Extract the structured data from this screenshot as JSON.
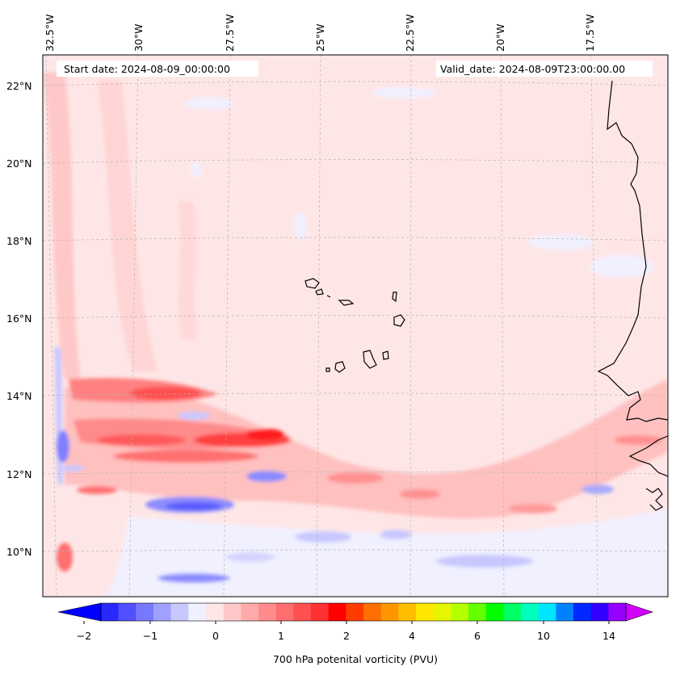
{
  "map": {
    "start_label": "Start date: 2024-08-09_00:00:00",
    "valid_label": "Valid_date: 2024-08-09T23:00:00.00",
    "lon_labels": [
      "32.5°W",
      "30°W",
      "27.5°W",
      "25°W",
      "22.5°W",
      "20°W",
      "17.5°W"
    ],
    "lat_labels": [
      "22°N",
      "20°N",
      "18°N",
      "16°N",
      "14°N",
      "12°N",
      "10°N"
    ],
    "background_color": "#ffe6e6",
    "coast_color": "#000000"
  },
  "colorbar": {
    "title": "700 hPa potenital vorticity (PVU)",
    "tick_labels": [
      "−2",
      "−1",
      "0",
      "1",
      "2",
      "4",
      "6",
      "10",
      "14"
    ],
    "colors": [
      "#0000ff",
      "#2828ff",
      "#5050ff",
      "#7878ff",
      "#a0a0ff",
      "#c8c8ff",
      "#f0f0ff",
      "#ffe6e6",
      "#ffc8c8",
      "#ffaaaa",
      "#ff8c8c",
      "#ff6e6e",
      "#ff5050",
      "#ff3232",
      "#ff0000",
      "#ff3c00",
      "#ff6e00",
      "#ff9600",
      "#ffbe00",
      "#ffe600",
      "#e6f500",
      "#b4ff00",
      "#64ff00",
      "#00ff00",
      "#00ff64",
      "#00ffbe",
      "#00e6ff",
      "#0082ff",
      "#0028ff",
      "#3200ff",
      "#9600ff",
      "#d200ff"
    ]
  }
}
